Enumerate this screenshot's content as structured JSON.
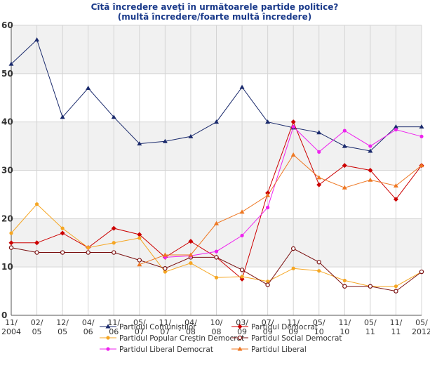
{
  "chart_data": {
    "type": "line",
    "title": "Cîtă încredere aveţi în următoarele partide politice?",
    "subtitle": "(multă încredere/foarte multă încredere)",
    "ylim": [
      0,
      60
    ],
    "yticks": [
      "0",
      "10",
      "20",
      "30",
      "40",
      "50",
      "60"
    ],
    "categories": [
      "11/ 2004",
      "02/ 05",
      "12/ 05",
      "04/ 06",
      "11/ 06",
      "05/ 07",
      "11/ 07",
      "04/ 08",
      "10/ 08",
      "03/ 09",
      "07/ 09",
      "11/ 09",
      "05/ 10",
      "11/ 10",
      "05/ 11",
      "11/ 11",
      "05/ 2012"
    ],
    "series": [
      {
        "name": "Partidul Comuniştilor",
        "color": "#1a2a6c",
        "marker": "triangle",
        "values": [
          52,
          57,
          41,
          47,
          41,
          35.5,
          36,
          37,
          40,
          47.2,
          40,
          38.8,
          37.8,
          35,
          34,
          39,
          39
        ]
      },
      {
        "name": "Partidul Democrat",
        "color": "#cc0000",
        "marker": "diamond",
        "values": [
          15,
          15,
          17,
          14,
          18,
          16.7,
          12,
          15.3,
          12,
          7.5,
          25.3,
          40,
          27,
          31,
          30,
          24,
          31
        ]
      },
      {
        "name": "Partidul Popular Creştin Democrat",
        "color": "#f5a623",
        "marker": "dot",
        "values": [
          17,
          23,
          18,
          14,
          15,
          16,
          9,
          10.8,
          7.8,
          8,
          7,
          9.7,
          9.2,
          7.2,
          6,
          6,
          9
        ]
      },
      {
        "name": "Partidul Social Democrat",
        "color": "#7a1010",
        "marker": "circle",
        "values": [
          14,
          13,
          13,
          13,
          13,
          11.4,
          9.7,
          12,
          12,
          9.4,
          6.3,
          13.8,
          11,
          6,
          6,
          5,
          9
        ]
      },
      {
        "name": "Partidul Liberal Democrat",
        "color": "#ee22ee",
        "marker": "dot",
        "values": [
          null,
          null,
          null,
          null,
          null,
          null,
          12,
          12.3,
          13.2,
          16.5,
          22.3,
          39,
          33.8,
          38.2,
          35,
          38.4,
          37
        ]
      },
      {
        "name": "Partidul Liberal",
        "color": "#ee7722",
        "marker": "triangle",
        "values": [
          null,
          null,
          null,
          null,
          null,
          10.5,
          12.5,
          12.5,
          19,
          21.4,
          24.8,
          33.2,
          28.5,
          26.4,
          28,
          26.8,
          31
        ]
      }
    ]
  }
}
